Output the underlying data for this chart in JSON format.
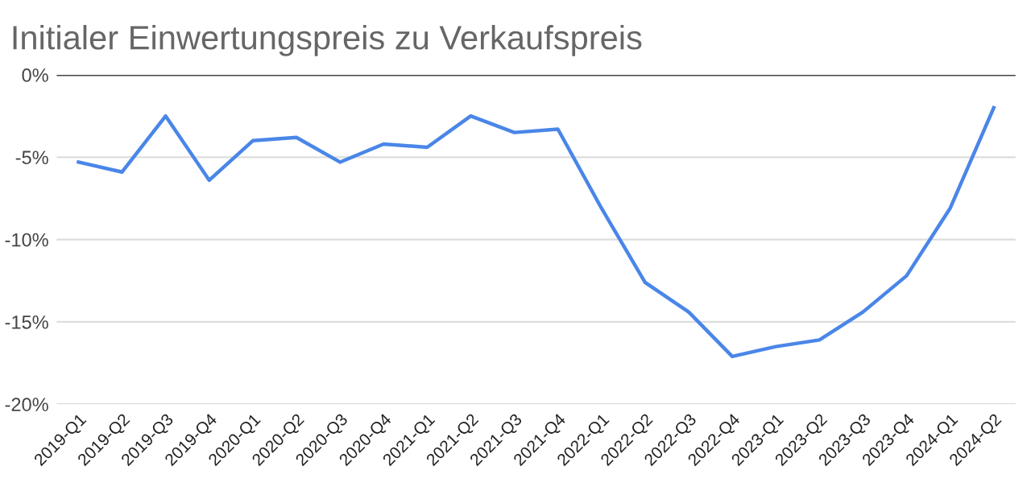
{
  "chart_data": {
    "type": "line",
    "title": "Initialer Einwertungspreis zu Verkaufspreis",
    "categories": [
      "2019-Q1",
      "2019-Q2",
      "2019-Q3",
      "2019-Q4",
      "2020-Q1",
      "2020-Q2",
      "2020-Q3",
      "2020-Q4",
      "2021-Q1",
      "2021-Q2",
      "2021-Q3",
      "2021-Q4",
      "2022-Q1",
      "2022-Q2",
      "2022-Q3",
      "2022-Q4",
      "2023-Q1",
      "2023-Q2",
      "2023-Q3",
      "2023-Q4",
      "2024-Q1",
      "2024-Q2"
    ],
    "series": [
      {
        "color": "#4a86e8",
        "values": [
          -5.3,
          -5.9,
          -2.5,
          -6.4,
          -4.0,
          -3.8,
          -5.3,
          -4.2,
          -4.4,
          -2.5,
          -3.5,
          -3.3,
          -8.1,
          -12.6,
          -14.4,
          -17.1,
          -16.5,
          -16.1,
          -14.4,
          -12.2,
          -8.1,
          -2.0
        ]
      }
    ],
    "ylim": [
      -20,
      0
    ],
    "yticks": [
      {
        "value": -20,
        "label": "-20%"
      },
      {
        "value": -15,
        "label": "-15%"
      },
      {
        "value": -10,
        "label": "-10%"
      },
      {
        "value": -5,
        "label": "-5%"
      },
      {
        "value": 0,
        "label": "0%"
      }
    ],
    "grid": "y",
    "marker": "none",
    "line_style": "solid"
  }
}
